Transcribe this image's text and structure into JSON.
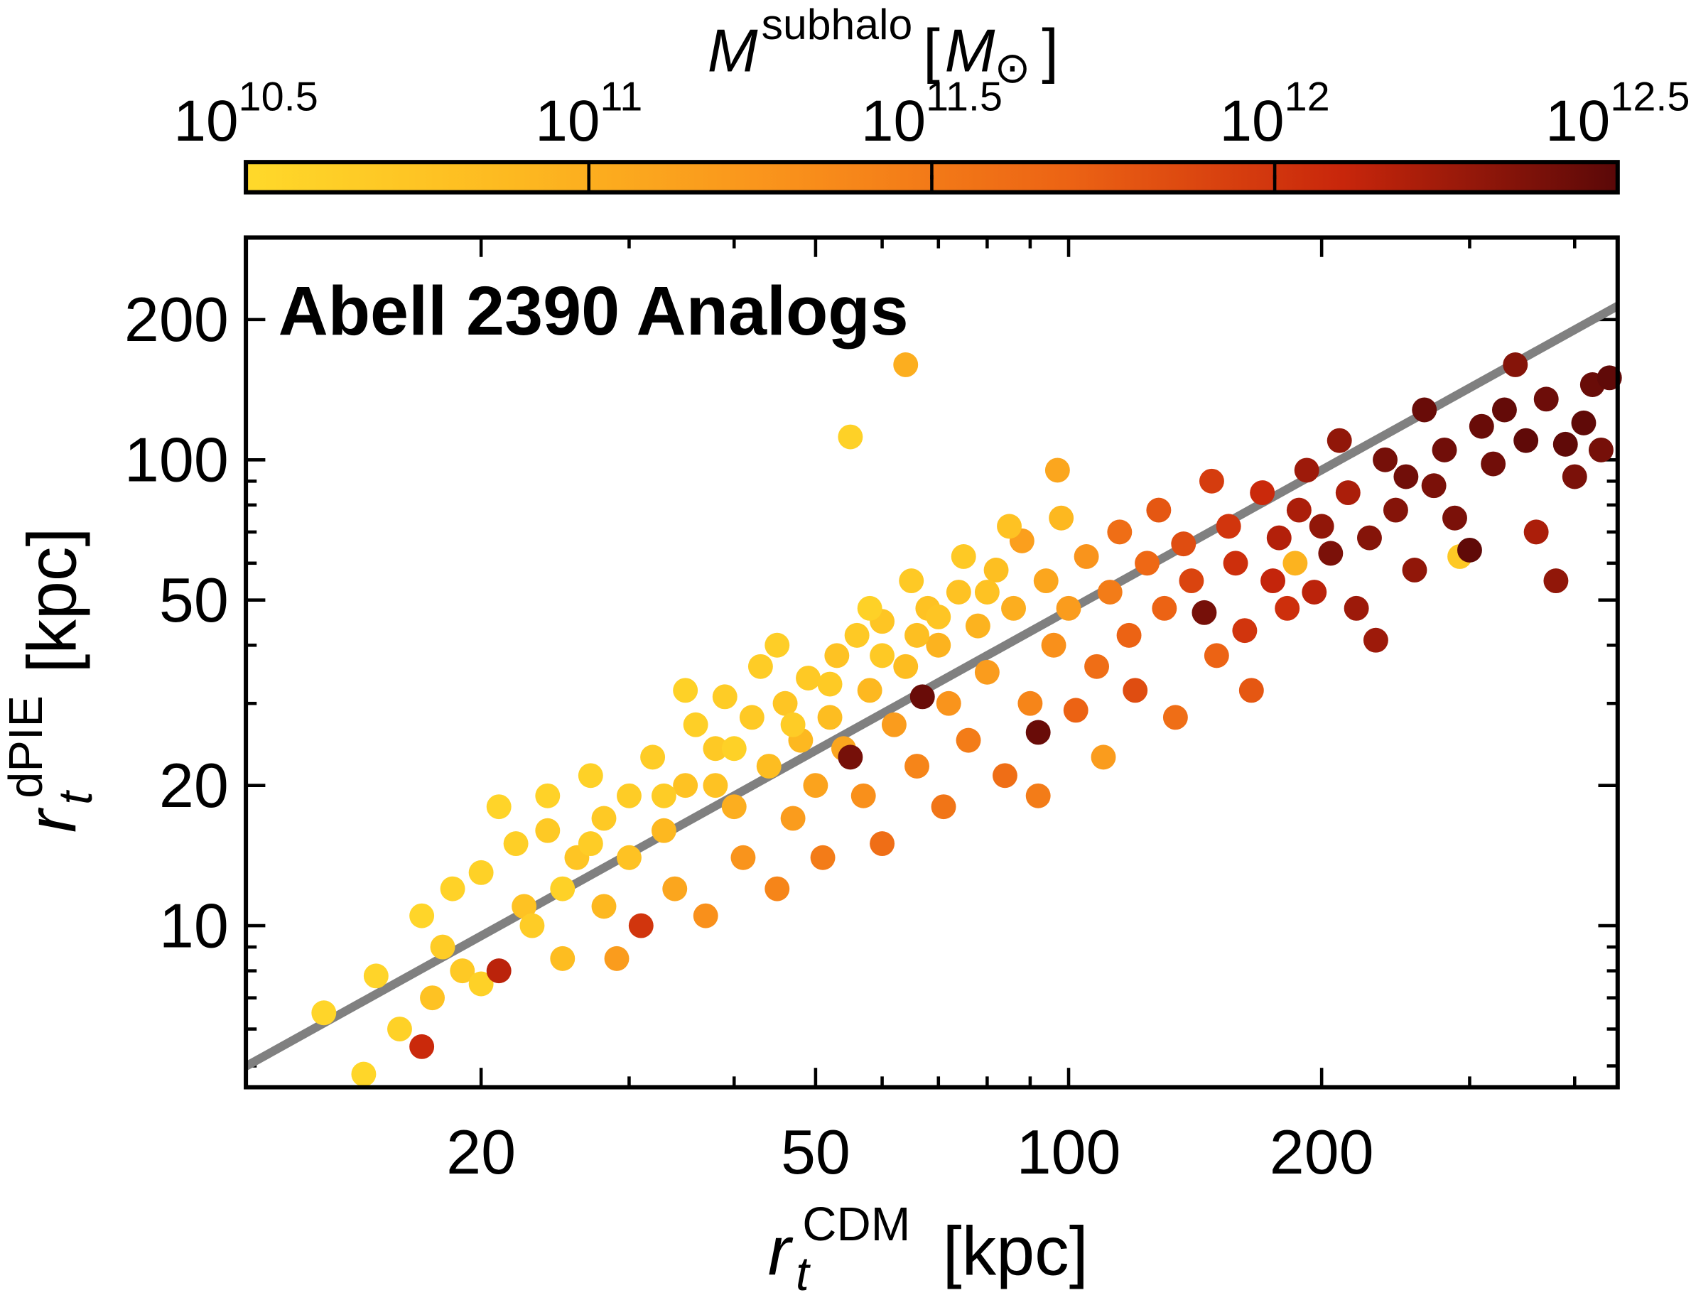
{
  "chart_data": {
    "type": "scatter",
    "title": "Abell 2390 Analogs",
    "x_label": {
      "symbol": "r",
      "sub": "t",
      "sup": "CDM",
      "unit": "[kpc]"
    },
    "y_label": {
      "symbol": "r",
      "sub": "t",
      "sup": "dPIE",
      "unit": "[kpc]"
    },
    "xscale": "log",
    "yscale": "log",
    "xlim": [
      10.5,
      450
    ],
    "ylim": [
      4.5,
      300
    ],
    "xticks": [
      20,
      50,
      100,
      200
    ],
    "yticks": [
      10,
      20,
      50,
      100,
      200
    ],
    "xminorticks": [
      30,
      40,
      60,
      70,
      80,
      90,
      300,
      400
    ],
    "yminorticks": [
      5,
      6,
      7,
      8,
      9,
      30,
      40,
      60,
      70,
      80,
      90
    ],
    "fit_line": {
      "x": [
        10.5,
        450
      ],
      "y": [
        4.99,
        214
      ],
      "color": "#808080"
    },
    "colorbar": {
      "label": {
        "symbol": "M",
        "sup": "subhalo",
        "unit_open": "[",
        "unit_symbol": "M",
        "unit_sub": "⊙",
        "unit_close": "]"
      },
      "scale": "log",
      "lim": [
        31622776602,
        3162277660168
      ],
      "ticks": [
        {
          "value": 31622776602,
          "label": [
            "10",
            "10.5"
          ]
        },
        {
          "value": 100000000000,
          "label": [
            "10",
            "11"
          ]
        },
        {
          "value": 316227766017,
          "label": [
            "10",
            "11.5"
          ]
        },
        {
          "value": 1000000000000,
          "label": [
            "10",
            "12"
          ]
        },
        {
          "value": 3162277660168,
          "label": [
            "10",
            "12.5"
          ]
        }
      ],
      "colormap": [
        "#ffd92a",
        "#fdb820",
        "#f9901b",
        "#ec6314",
        "#c8260b",
        "#5a0808"
      ]
    },
    "series": [
      {
        "x": [
          13,
          14.5,
          15,
          16,
          17,
          17.5,
          17,
          18,
          18.5,
          19,
          20,
          21,
          20,
          21,
          22,
          22.5,
          23,
          24,
          24,
          25,
          25,
          26,
          27,
          28,
          28,
          29,
          30,
          30,
          31,
          32,
          33,
          34,
          35,
          36,
          37,
          38,
          39,
          40,
          41,
          42,
          43,
          44,
          45,
          46,
          47,
          48,
          49,
          50,
          51,
          52,
          53,
          54,
          55,
          55,
          56,
          57,
          58,
          60,
          60,
          62,
          64,
          64,
          66,
          67,
          68,
          70,
          71,
          72,
          74,
          76,
          78,
          80,
          82,
          84,
          86,
          88,
          90,
          92,
          92,
          94,
          96,
          97,
          98,
          100,
          102,
          105,
          108,
          110,
          112,
          115,
          118,
          120,
          124,
          128,
          130,
          134,
          137,
          140,
          145,
          148,
          150,
          155,
          158,
          162,
          165,
          170,
          175,
          178,
          182,
          186,
          188,
          192,
          196,
          200,
          205,
          210,
          215,
          220,
          228,
          232,
          238,
          245,
          252,
          258,
          265,
          272,
          280,
          288,
          292,
          300,
          310,
          320,
          330,
          340,
          350,
          360,
          370,
          380,
          390,
          400,
          410,
          420,
          430,
          440,
          35,
          45,
          65,
          75,
          85,
          58,
          40,
          47,
          52,
          60,
          70,
          80,
          33,
          27,
          38,
          66
        ],
        "values": [
          6.5,
          4.8,
          7.8,
          6,
          5.5,
          7,
          10.5,
          9,
          12,
          8,
          7.5,
          8,
          13,
          18,
          15,
          11,
          10,
          16,
          19,
          12,
          8.5,
          14,
          21,
          17,
          11,
          8.5,
          14,
          19,
          10,
          23,
          16,
          12,
          20,
          27,
          10.5,
          24,
          31,
          18,
          14,
          28,
          36,
          22,
          12,
          30,
          17,
          25,
          34,
          20,
          14,
          28,
          38,
          24,
          23,
          112,
          42,
          19,
          32,
          15,
          45,
          27,
          160,
          36,
          22,
          31,
          48,
          40,
          18,
          30,
          52,
          25,
          44,
          35,
          58,
          21,
          48,
          67,
          30,
          26,
          19,
          55,
          40,
          95,
          75,
          48,
          29,
          62,
          36,
          23,
          52,
          70,
          42,
          32,
          60,
          78,
          48,
          28,
          66,
          55,
          47,
          90,
          38,
          72,
          60,
          43,
          32,
          85,
          55,
          68,
          48,
          60,
          78,
          95,
          52,
          72,
          63,
          110,
          85,
          48,
          68,
          41,
          100,
          78,
          92,
          58,
          128,
          88,
          105,
          75,
          62,
          64,
          118,
          98,
          128,
          160,
          110,
          70,
          135,
          55,
          108,
          92,
          120,
          145,
          105,
          150,
          32,
          40,
          55,
          62,
          72,
          48,
          24,
          27,
          33,
          38,
          46,
          52,
          19,
          15,
          20,
          42
        ],
        "mass": [
          35000000000.0,
          34000000000.0,
          36000000000.0,
          40000000000.0,
          1200000000000.0,
          60000000000.0,
          35000000000.0,
          45000000000.0,
          38000000000.0,
          50000000000.0,
          40000000000.0,
          1400000000000.0,
          40000000000.0,
          36000000000.0,
          42000000000.0,
          60000000000.0,
          45000000000.0,
          50000000000.0,
          38000000000.0,
          40000000000.0,
          70000000000.0,
          55000000000.0,
          40000000000.0,
          50000000000.0,
          80000000000.0,
          150000000000.0,
          60000000000.0,
          45000000000.0,
          1000000000000.0,
          45000000000.0,
          80000000000.0,
          120000000000.0,
          60000000000.0,
          42000000000.0,
          200000000000.0,
          50000000000.0,
          45000000000.0,
          100000000000.0,
          180000000000.0,
          50000000000.0,
          45000000000.0,
          70000000000.0,
          250000000000.0,
          55000000000.0,
          150000000000.0,
          80000000000.0,
          50000000000.0,
          130000000000.0,
          300000000000.0,
          70000000000.0,
          60000000000.0,
          120000000000.0,
          2500000000000.0,
          40000000000.0,
          50000000000.0,
          200000000000.0,
          80000000000.0,
          400000000000.0,
          55000000000.0,
          150000000000.0,
          100000000000.0,
          70000000000.0,
          250000000000.0,
          2800000000000.0,
          60000000000.0,
          90000000000.0,
          350000000000.0,
          180000000000.0,
          60000000000.0,
          300000000000.0,
          90000000000.0,
          150000000000.0,
          65000000000.0,
          400000000000.0,
          100000000000.0,
          140000000000.0,
          250000000000.0,
          2800000000000.0,
          300000000000.0,
          120000000000.0,
          200000000000.0,
          120000000000.0,
          80000000000.0,
          150000000000.0,
          500000000000.0,
          180000000000.0,
          400000000000.0,
          150000000000.0,
          300000000000.0,
          400000000000.0,
          500000000000.0,
          700000000000.0,
          450000000000.0,
          600000000000.0,
          500000000000.0,
          400000000000.0,
          700000000000.0,
          800000000000.0,
          2500000000000.0,
          900000000000.0,
          500000000000.0,
          1000000000000.0,
          1100000000000.0,
          1000000000000.0,
          600000000000.0,
          1200000000000.0,
          1300000000000.0,
          1500000000000.0,
          1100000000000.0,
          90000000000.0,
          1600000000000.0,
          1800000000000.0,
          1400000000000.0,
          2000000000000.0,
          2400000000000.0,
          2000000000000.0,
          1600000000000.0,
          1800000000000.0,
          2200000000000.0,
          1800000000000.0,
          2500000000000.0,
          2200000000000.0,
          2600000000000.0,
          2000000000000.0,
          2800000000000.0,
          2400000000000.0,
          2600000000000.0,
          2400000000000.0,
          50000000000.0,
          3000000000000.0,
          2800000000000.0,
          2600000000000.0,
          2900000000000.0,
          2200000000000.0,
          3000000000000.0,
          1600000000000.0,
          2700000000000.0,
          2000000000000.0,
          3000000000000.0,
          2400000000000.0,
          3000000000000.0,
          2800000000000.0,
          2500000000000.0,
          3000000000000.0,
          40000000000.0,
          43000000000.0,
          50000000000.0,
          50000000000.0,
          60000000000.0,
          40000000000.0,
          40000000000.0,
          45000000000.0,
          48000000000.0,
          50000000000.0,
          55000000000.0,
          60000000000.0,
          45000000000.0,
          45000000000.0,
          60000000000.0,
          65000000000.0
        ]
      }
    ]
  }
}
